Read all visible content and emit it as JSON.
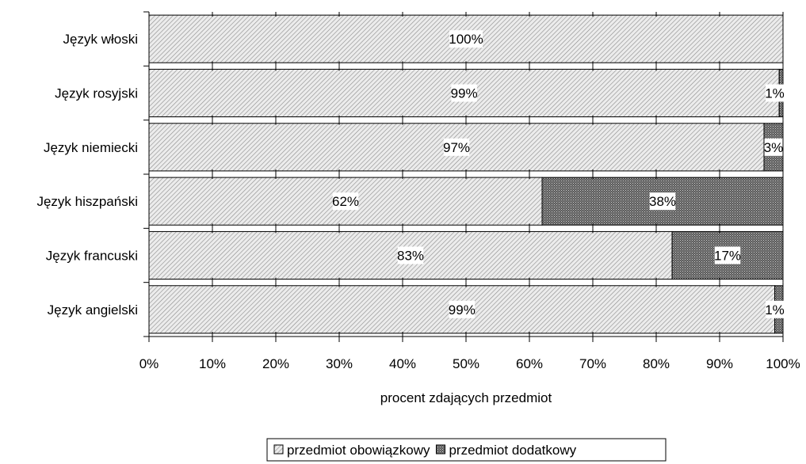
{
  "chart_data": {
    "type": "bar",
    "orientation": "horizontal",
    "stacked": true,
    "title": "",
    "xlabel": "procent zdających przedmiot",
    "ylabel": "",
    "xlim": [
      0,
      100
    ],
    "x_ticks": [
      "0%",
      "10%",
      "20%",
      "30%",
      "40%",
      "50%",
      "60%",
      "70%",
      "80%",
      "90%",
      "100%"
    ],
    "categories": [
      "Język włoski",
      "Język rosyjski",
      "Język niemiecki",
      "Język hiszpański",
      "Język francuski",
      "Język angielski"
    ],
    "series": [
      {
        "name": "przedmiot obowiązkowy",
        "values": [
          100,
          99.4,
          97,
          62,
          82.5,
          98.7
        ],
        "labels": [
          "100%",
          "99%",
          "97%",
          "62%",
          "83%",
          "99%"
        ],
        "pattern": "light-hatch"
      },
      {
        "name": "przedmiot dodatkowy",
        "values": [
          0,
          0.6,
          3,
          38,
          17.5,
          1.3
        ],
        "labels": [
          "",
          "1%",
          "3%",
          "38%",
          "17%",
          "1%"
        ],
        "pattern": "dark-crosshatch"
      }
    ],
    "legend_position": "bottom-center",
    "grid": false
  }
}
